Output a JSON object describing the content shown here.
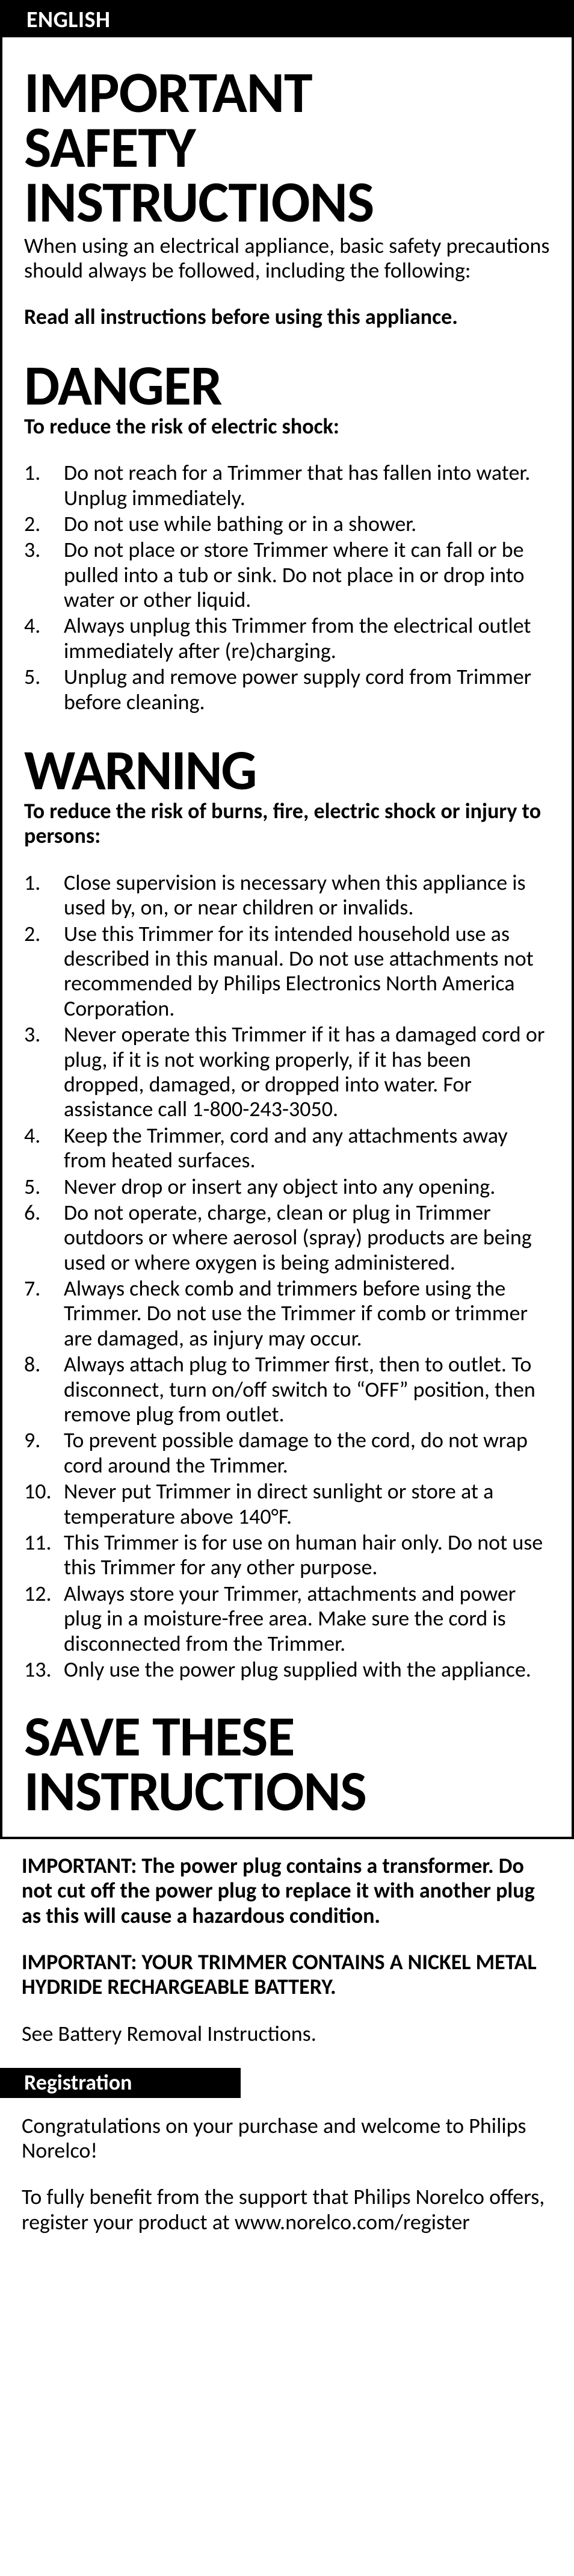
{
  "header_label": "ENGLISH",
  "important": {
    "title_l1": "IMPORTANT",
    "title_l2": "SAFETY",
    "title_l3": "INSTRUCTIONS",
    "intro": "When using an electrical appliance, basic safety precautions should always be followed, including the following:",
    "read_all": "Read all instructions before using this appliance."
  },
  "danger": {
    "title": "DANGER",
    "sub": "To reduce the risk of electric shock:",
    "items": [
      "Do not reach for a Trimmer that has fallen into water. Unplug immediately.",
      "Do not use while bathing or in a shower.",
      "Do not place or store Trimmer where it can fall or be pulled into a tub or sink. Do not place in or drop into water or other liquid.",
      "Always unplug this Trimmer from the electrical outlet immediately after (re)charging.",
      "Unplug and remove power supply cord from Trimmer before cleaning."
    ]
  },
  "warning": {
    "title": "WARNING",
    "sub": "To reduce the risk of burns, fire, electric shock or injury to persons:",
    "items": [
      "Close supervision is necessary when this appliance is used by, on, or near children or invalids.",
      "Use this Trimmer for its intended household use as described in this manual. Do not use attachments not recommended by Philips Electronics North America Corporation.",
      "Never operate this Trimmer if it has a damaged cord or plug, if it is not working properly, if it has been dropped, damaged, or dropped into water. For assistance call 1-800-243-3050.",
      "Keep the Trimmer, cord and any attachments away from heated surfaces.",
      "Never drop or insert any object into any opening.",
      "Do not operate, charge, clean or plug in Trimmer outdoors or where aerosol (spray) products are being used or where oxygen is being administered.",
      "Always check comb and trimmers before using the Trimmer. Do not use the Trimmer if comb or trimmer are damaged, as injury may occur.",
      "Always attach plug to Trimmer first, then to outlet. To disconnect, turn on/off switch to “OFF” position, then remove plug from outlet.",
      "To prevent possible damage to the cord, do not wrap cord around the Trimmer.",
      "Never put Trimmer in direct sunlight or store at a temperature above 140°F.",
      "This Trimmer is for use on human hair only. Do not use this Trimmer for any other purpose.",
      "Always store your Trimmer, attachments and power plug in a moisture-free area. Make sure the cord is disconnected from the Trimmer.",
      "Only use the power plug supplied with the appliance."
    ]
  },
  "save": {
    "title_l1": "SAVE THESE",
    "title_l2": "INSTRUCTIONS"
  },
  "below": {
    "imp1_label": "IMPORTANT:",
    "imp1_text": "  The power plug contains a transformer.  Do not cut off the power plug to replace it with another plug as this will cause a hazardous condition.",
    "imp2_label": "IMPORTANT:",
    "imp2_text": "  YOUR TRIMMER CONTAINS A NICKEL METAL HYDRIDE RECHARGEABLE BATTERY.",
    "see": "See Battery Removal Instructions.",
    "reg_title": "Registration",
    "congrats": "Congratulations on your purchase and welcome to Philips Norelco!",
    "benefit": "To fully benefit from the support that Philips Norelco offers, register your product at www.norelco.com/register"
  }
}
